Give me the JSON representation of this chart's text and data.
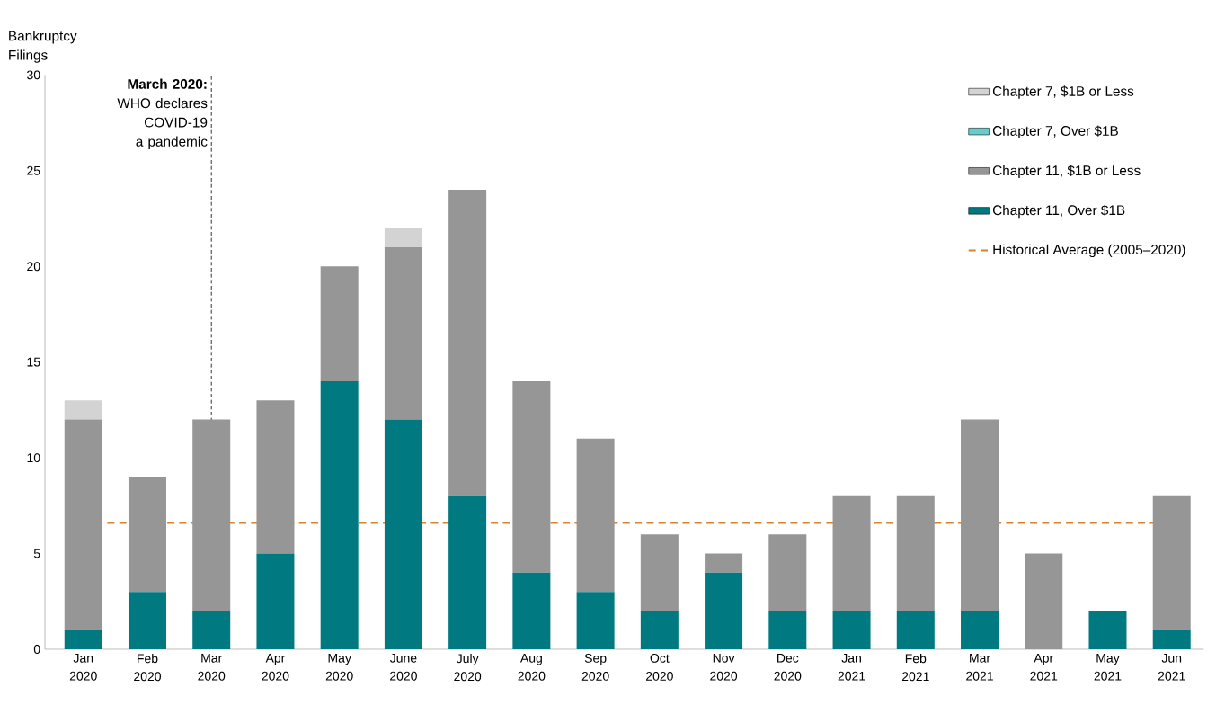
{
  "chart_data": {
    "type": "bar",
    "stacked": true,
    "ylabel": "Bankruptcy Filings",
    "categories": [
      "Jan 2020",
      "Feb 2020",
      "Mar 2020",
      "Apr 2020",
      "May 2020",
      "June 2020",
      "July 2020",
      "Aug 2020",
      "Sep 2020",
      "Oct 2020",
      "Nov 2020",
      "Dec 2020",
      "Jan 2021",
      "Feb 2021",
      "Mar 2021",
      "Apr 2021",
      "May 2021",
      "Jun 2021"
    ],
    "series": [
      {
        "name": "Chapter 11, Over $1B",
        "color": "#007a80",
        "values": [
          1,
          3,
          2,
          5,
          14,
          12,
          8,
          4,
          3,
          2,
          4,
          2,
          2,
          2,
          2,
          0,
          2,
          1
        ]
      },
      {
        "name": "Chapter 11, $1B or Less",
        "color": "#969696",
        "values": [
          11,
          6,
          10,
          8,
          6,
          9,
          16,
          10,
          8,
          4,
          1,
          4,
          6,
          6,
          10,
          5,
          0,
          7
        ]
      },
      {
        "name": "Chapter 7, Over $1B",
        "color": "#66cccc",
        "values": [
          0,
          0,
          0,
          0,
          0,
          0,
          0,
          0,
          0,
          0,
          0,
          0,
          0,
          0,
          0,
          0,
          0,
          0
        ]
      },
      {
        "name": "Chapter 7, $1B or Less",
        "color": "#d3d3d3",
        "values": [
          1,
          0,
          0,
          0,
          0,
          1,
          0,
          0,
          0,
          0,
          0,
          0,
          0,
          0,
          0,
          0,
          0,
          0
        ]
      }
    ],
    "ylim": [
      0,
      30
    ],
    "yticks": [
      0,
      5,
      10,
      15,
      20,
      25,
      30
    ],
    "legend": "top right",
    "ref_lines": [
      {
        "axis": "y",
        "value": 6.6,
        "label": "Historical Average (2005–2020)",
        "color": "#d9822b",
        "line_style": "dashed"
      },
      {
        "axis": "x",
        "value": "Mar 2020",
        "label": "**March 2020:** WHO declares COVID-19 a pandemic",
        "color": "#000000",
        "line_style": "dashed"
      }
    ]
  }
}
